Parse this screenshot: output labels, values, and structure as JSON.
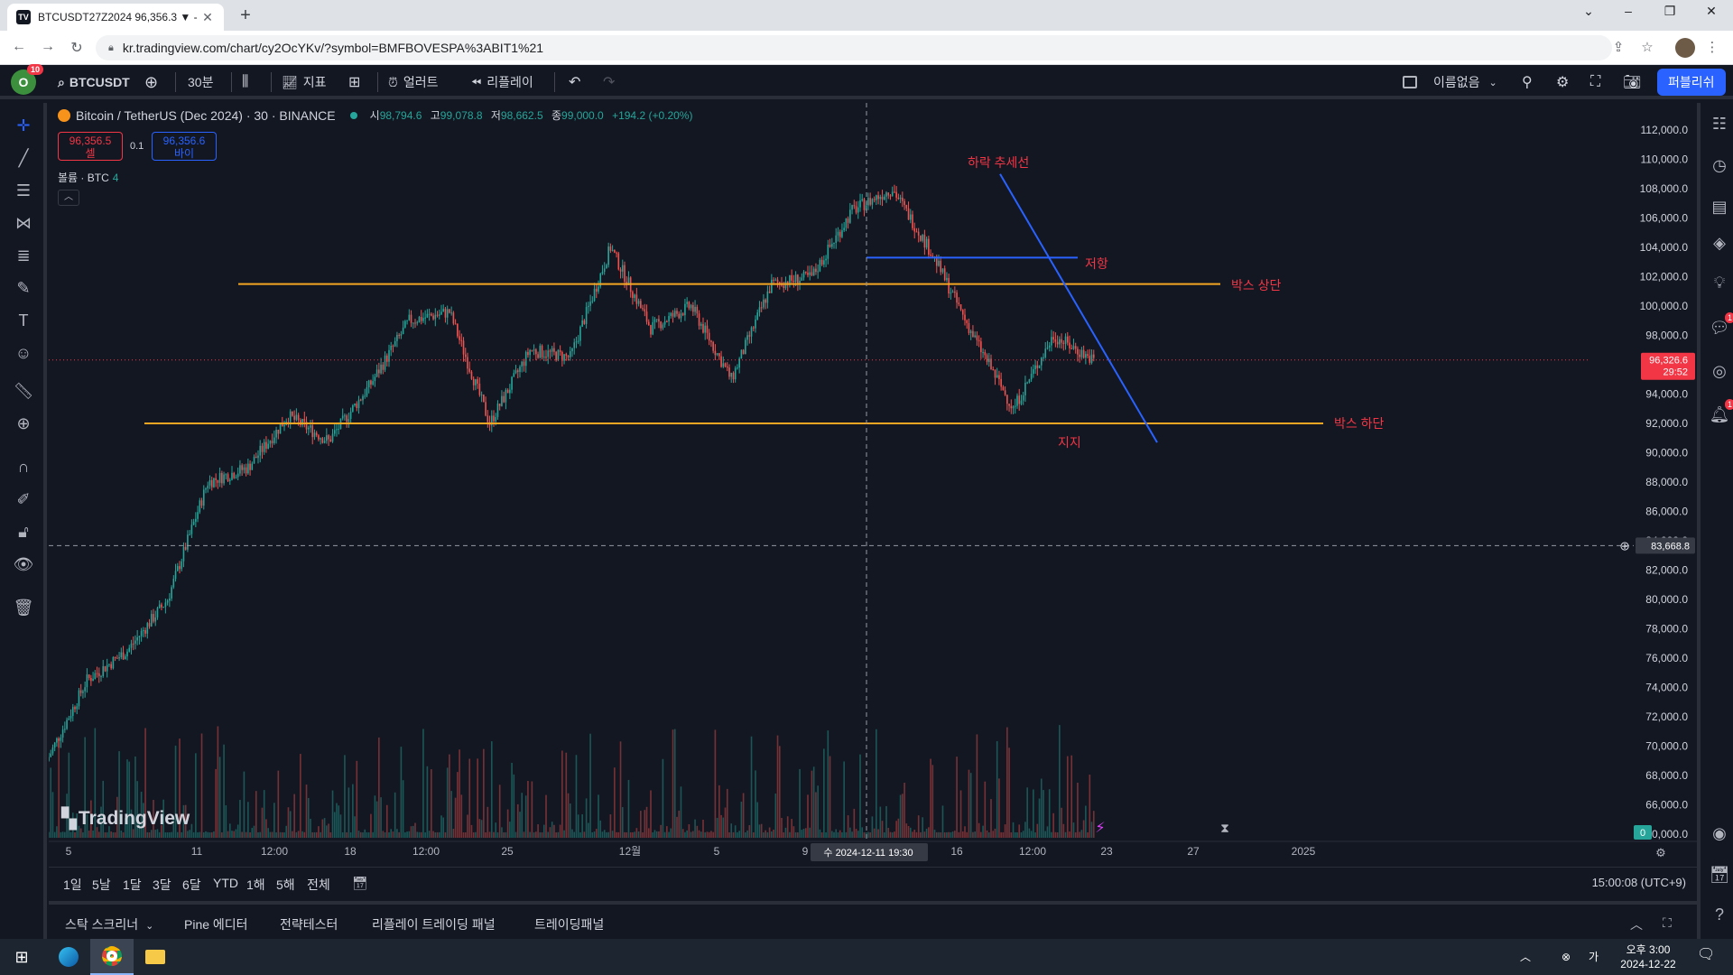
{
  "browser": {
    "tab_title": "BTCUSDT27Z2024 96,356.3 ▼ -",
    "tab_favicon": "TV",
    "url": "kr.tradingview.com/chart/cy2OcYKv/?symbol=BMFBOVESPA%3ABIT1%21"
  },
  "header": {
    "avatar_letter": "O",
    "avatar_badge": "10",
    "symbol": "BTCUSDT",
    "interval": "30분",
    "indicators": "지표",
    "alert": "얼러트",
    "replay": "리플레이",
    "layout_name": "이름없음",
    "publish": "퍼블리쉬"
  },
  "legend": {
    "title": "Bitcoin / TetherUS (Dec 2024) · 30 · BINANCE",
    "o_label": "시",
    "o_val": "98,794.6",
    "h_label": "고",
    "h_val": "99,078.8",
    "l_label": "저",
    "l_val": "98,662.5",
    "c_label": "종",
    "c_val": "99,000.0",
    "change": "+194.2 (+0.20%)",
    "sell_price": "96,356.5",
    "sell_label": "셀",
    "quantity": "0.1",
    "buy_price": "96,356.6",
    "buy_label": "바이",
    "volume_label": "볼륨 · BTC",
    "volume_count": "4"
  },
  "annotations": {
    "downtrend": "하락 추세선",
    "resistance": "저항",
    "box_top": "박스 상단",
    "box_bottom": "박스 하단",
    "support": "지지"
  },
  "watermark": "TradingView",
  "price_axis": {
    "ticks": [
      "112,000.0",
      "110,000.0",
      "108,000.0",
      "106,000.0",
      "104,000.0",
      "102,000.0",
      "100,000.0",
      "98,000.0",
      "96,000.0",
      "94,000.0",
      "92,000.0",
      "90,000.0",
      "88,000.0",
      "86,000.0",
      "84,000.0",
      "82,000.0",
      "80,000.0",
      "78,000.0",
      "76,000.0",
      "74,000.0",
      "72,000.0",
      "70,000.0",
      "68,000.0",
      "66,000.0",
      "0,000.0"
    ],
    "current_price": "96,326.6",
    "countdown": "29:52",
    "crosshair_price": "83,668.8",
    "volume_zero": "0"
  },
  "time_axis": {
    "ticks": [
      "5",
      "11",
      "12:00",
      "18",
      "12:00",
      "25",
      "12월",
      "5",
      "9",
      "16",
      "12:00",
      "23",
      "27",
      "2025"
    ],
    "crosshair_label": "수 2024-12-11  19:30"
  },
  "range_buttons": [
    "1일",
    "5날",
    "1달",
    "3달",
    "6달",
    "YTD",
    "1해",
    "5해",
    "전체"
  ],
  "clock": "15:00:08 (UTC+9)",
  "bottom_tabs": [
    "스탁 스크리너",
    "Pine 에디터",
    "전략테스터",
    "리플레이 트레이딩 패널",
    "트레이딩패널"
  ],
  "taskbar": {
    "time": "오후 3:00",
    "date": "2024-12-22"
  },
  "colors": {
    "background": "#131722",
    "up": "#26a69a",
    "down": "#ef5350",
    "box_line": "#f5a623",
    "trend_line": "#2962ff",
    "annotation": "#f23645"
  },
  "chart_data": {
    "type": "candlestick",
    "title": "Bitcoin / TetherUS (Dec 2024) · 30 · BINANCE",
    "y_range": [
      65000,
      113000
    ],
    "x_labels": [
      "5",
      "11",
      "18",
      "25",
      "12월",
      "5",
      "9",
      "16",
      "23",
      "27",
      "2025"
    ],
    "price_path": [
      {
        "x": "Nov 5",
        "price": 69000
      },
      {
        "x": "Nov 6",
        "price": 74500
      },
      {
        "x": "Nov 8",
        "price": 76500
      },
      {
        "x": "Nov 10",
        "price": 80000
      },
      {
        "x": "Nov 11",
        "price": 88000
      },
      {
        "x": "Nov 12",
        "price": 89000
      },
      {
        "x": "Nov 13",
        "price": 92500
      },
      {
        "x": "Nov 17",
        "price": 90800
      },
      {
        "x": "Nov 20",
        "price": 94500
      },
      {
        "x": "Nov 22",
        "price": 99000
      },
      {
        "x": "Nov 23",
        "price": 99600
      },
      {
        "x": "Nov 26",
        "price": 92000
      },
      {
        "x": "Nov 29",
        "price": 97000
      },
      {
        "x": "Dec 2",
        "price": 96500
      },
      {
        "x": "Dec 5",
        "price": 104000
      },
      {
        "x": "Dec 6",
        "price": 98500
      },
      {
        "x": "Dec 8",
        "price": 100000
      },
      {
        "x": "Dec 10",
        "price": 95000
      },
      {
        "x": "Dec 12",
        "price": 101500
      },
      {
        "x": "Dec 14",
        "price": 102000
      },
      {
        "x": "Dec 16",
        "price": 106500
      },
      {
        "x": "Dec 17",
        "price": 108000
      },
      {
        "x": "Dec 18",
        "price": 103500
      },
      {
        "x": "Dec 19",
        "price": 98000
      },
      {
        "x": "Dec 20",
        "price": 93000
      },
      {
        "x": "Dec 21",
        "price": 98000
      },
      {
        "x": "Dec 22",
        "price": 96300
      }
    ],
    "horizontal_lines": [
      {
        "name": "박스 상단",
        "price": 101500
      },
      {
        "name": "박스 하단",
        "price": 92000
      },
      {
        "name": "저항",
        "price": 103300
      }
    ],
    "trend_line": {
      "name": "하락 추세선",
      "from_price": 109000,
      "to_price": 90700
    },
    "crosshair": {
      "price": 83668.8,
      "time": "2024-12-11 19:30"
    }
  }
}
